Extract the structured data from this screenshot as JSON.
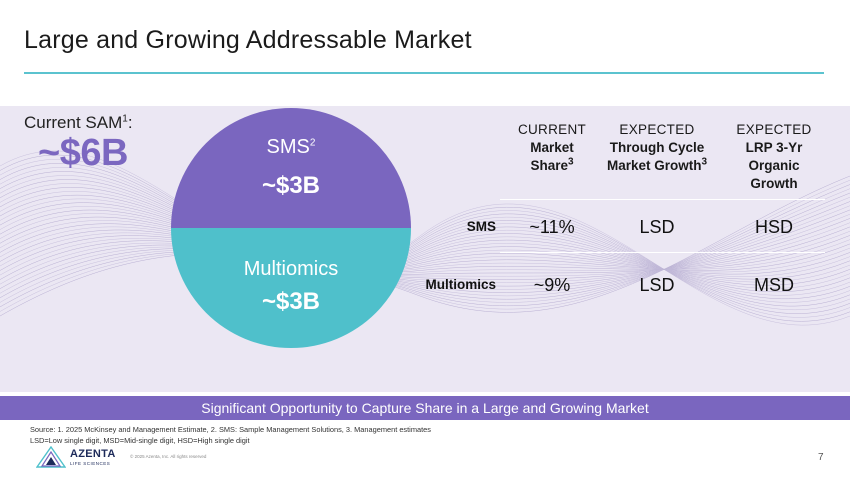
{
  "title": "Large and Growing Addressable Market",
  "sam": {
    "label": "Current SAM",
    "label_sup": "1",
    "label_suffix": ":",
    "value": "~$6B"
  },
  "segments": [
    {
      "name": "SMS",
      "sup": "2",
      "value": "~$3B",
      "color": "#7a66bf"
    },
    {
      "name": "Multiomics",
      "sup": "",
      "value": "~$3B",
      "color": "#4fc0cb"
    }
  ],
  "table": {
    "columns": [
      {
        "caption": "CURRENT",
        "desc_lines": [
          "Market",
          "Share"
        ],
        "desc_sup": "3"
      },
      {
        "caption": "EXPECTED",
        "desc_lines": [
          "Through Cycle",
          "Market Growth"
        ],
        "desc_sup": "3"
      },
      {
        "caption": "EXPECTED",
        "desc_lines": [
          "LRP 3-Yr",
          "Organic",
          "Growth"
        ],
        "desc_sup": ""
      }
    ],
    "rows": [
      {
        "label": "SMS",
        "values": [
          "~11%",
          "LSD",
          "HSD"
        ]
      },
      {
        "label": "Multiomics",
        "values": [
          "~9%",
          "LSD",
          "MSD"
        ]
      }
    ]
  },
  "banner": "Significant Opportunity to Capture Share in a Large and Growing Market",
  "source_lines": [
    "Source: 1. 2025 McKinsey and Management Estimate, 2. SMS: Sample Management Solutions, 3. Management estimates",
    "LSD=Low single digit, MSD=Mid-single digit, HSD=High single digit"
  ],
  "logo": {
    "name": "AZENTA",
    "sub": "LIFE SCIENCES"
  },
  "copyright": "© 2025 Azenta, Inc. All rights reserved",
  "page_number": "7",
  "colors": {
    "accent_purple": "#7a66bf",
    "accent_teal": "#4fc0cb",
    "panel": "#ebe7f3"
  }
}
